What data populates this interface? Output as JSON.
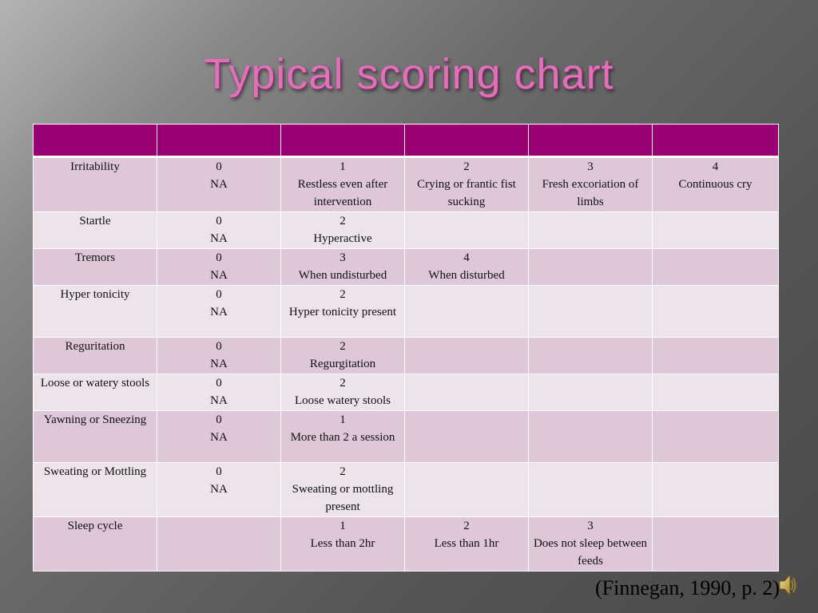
{
  "title": "Typical scoring chart",
  "table": {
    "header": [
      "",
      "",
      "",
      "",
      "",
      ""
    ],
    "rows": [
      {
        "sign": "Irritability",
        "cells": [
          [
            "0",
            "NA"
          ],
          [
            "1",
            "Restless even after intervention"
          ],
          [
            "2",
            "Crying or frantic fist sucking"
          ],
          [
            "3",
            "Fresh excoriation of limbs"
          ],
          [
            "4",
            "Continuous cry"
          ]
        ]
      },
      {
        "sign": "Startle",
        "cells": [
          [
            "0",
            "NA"
          ],
          [
            "2",
            "Hyperactive"
          ],
          [],
          [],
          []
        ]
      },
      {
        "sign": "Tremors",
        "cells": [
          [
            "0",
            "NA"
          ],
          [
            "3",
            "When undisturbed"
          ],
          [
            "4",
            "When disturbed"
          ],
          [],
          []
        ]
      },
      {
        "sign": "Hyper tonicity",
        "cells": [
          [
            "0",
            "NA"
          ],
          [
            "2",
            "Hyper tonicity present"
          ],
          [],
          [],
          []
        ]
      },
      {
        "sign": "Reguritation",
        "cells": [
          [
            "0",
            "NA"
          ],
          [
            "2",
            "Regurgitation"
          ],
          [],
          [],
          []
        ]
      },
      {
        "sign": "Loose or watery stools",
        "cells": [
          [
            "0",
            "NA"
          ],
          [
            "2",
            "Loose watery stools"
          ],
          [],
          [],
          []
        ]
      },
      {
        "sign": "Yawning or Sneezing",
        "cells": [
          [
            "0",
            "NA"
          ],
          [
            "1",
            "More than 2 a session"
          ],
          [],
          [],
          []
        ]
      },
      {
        "sign": "Sweating or Mottling",
        "cells": [
          [
            "0",
            "NA"
          ],
          [
            "2",
            "Sweating or mottling present"
          ],
          [],
          [],
          []
        ]
      },
      {
        "sign": "Sleep cycle",
        "cells": [
          [],
          [
            "1",
            "Less than 2hr"
          ],
          [
            "2",
            "Less than 1hr"
          ],
          [
            "3",
            "Does not sleep between feeds"
          ],
          []
        ]
      }
    ]
  },
  "citation": "(Finnegan, 1990, p. 2)",
  "colors": {
    "title": "#e070b8",
    "header_fill": "#990073",
    "row_odd": "#dec7d8",
    "row_even": "#ede3ea"
  },
  "icons": {
    "audio": "speaker-icon"
  }
}
